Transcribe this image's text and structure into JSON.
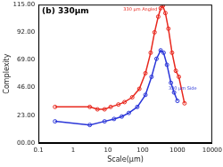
{
  "chart_data": {
    "type": "scatter",
    "title": "(b) 330μm",
    "x_label": "Scale(μm)",
    "y_label": "Complexity",
    "log": "x",
    "grid": false,
    "xlim": [
      0.1,
      10000
    ],
    "xticks": [
      0.1,
      1,
      10,
      100,
      1000,
      10000
    ],
    "ylim": [
      0,
      115
    ],
    "yticks": [
      {
        "value": 0,
        "label": "00.00"
      },
      {
        "value": 23,
        "label": "23.00"
      },
      {
        "value": 46,
        "label": "46.00"
      },
      {
        "value": 69,
        "label": "69.00"
      },
      {
        "value": 92,
        "label": "92.00"
      },
      {
        "value": 115,
        "label": "115.00"
      }
    ],
    "series": [
      {
        "name": "330 μm Angled",
        "color": "#e8281e",
        "marker": "circle",
        "x": [
          0.3,
          3,
          5,
          8,
          12,
          20,
          30,
          50,
          80,
          120,
          170,
          220,
          280,
          330,
          380,
          450,
          550,
          700,
          900,
          1100,
          1600
        ],
        "values": [
          30,
          30,
          28,
          28,
          30,
          32,
          34,
          38,
          45,
          58,
          75,
          92,
          105,
          112,
          114,
          108,
          95,
          75,
          60,
          55,
          33
        ]
      },
      {
        "name": "330 μm Side",
        "color": "#2a35d8",
        "marker": "circle",
        "x": [
          0.3,
          3,
          8,
          15,
          25,
          40,
          70,
          120,
          180,
          250,
          330,
          400,
          500,
          650,
          800,
          1000
        ],
        "values": [
          18,
          15,
          18,
          20,
          22,
          25,
          30,
          40,
          55,
          70,
          77,
          75,
          65,
          50,
          42,
          35
        ]
      }
    ]
  }
}
